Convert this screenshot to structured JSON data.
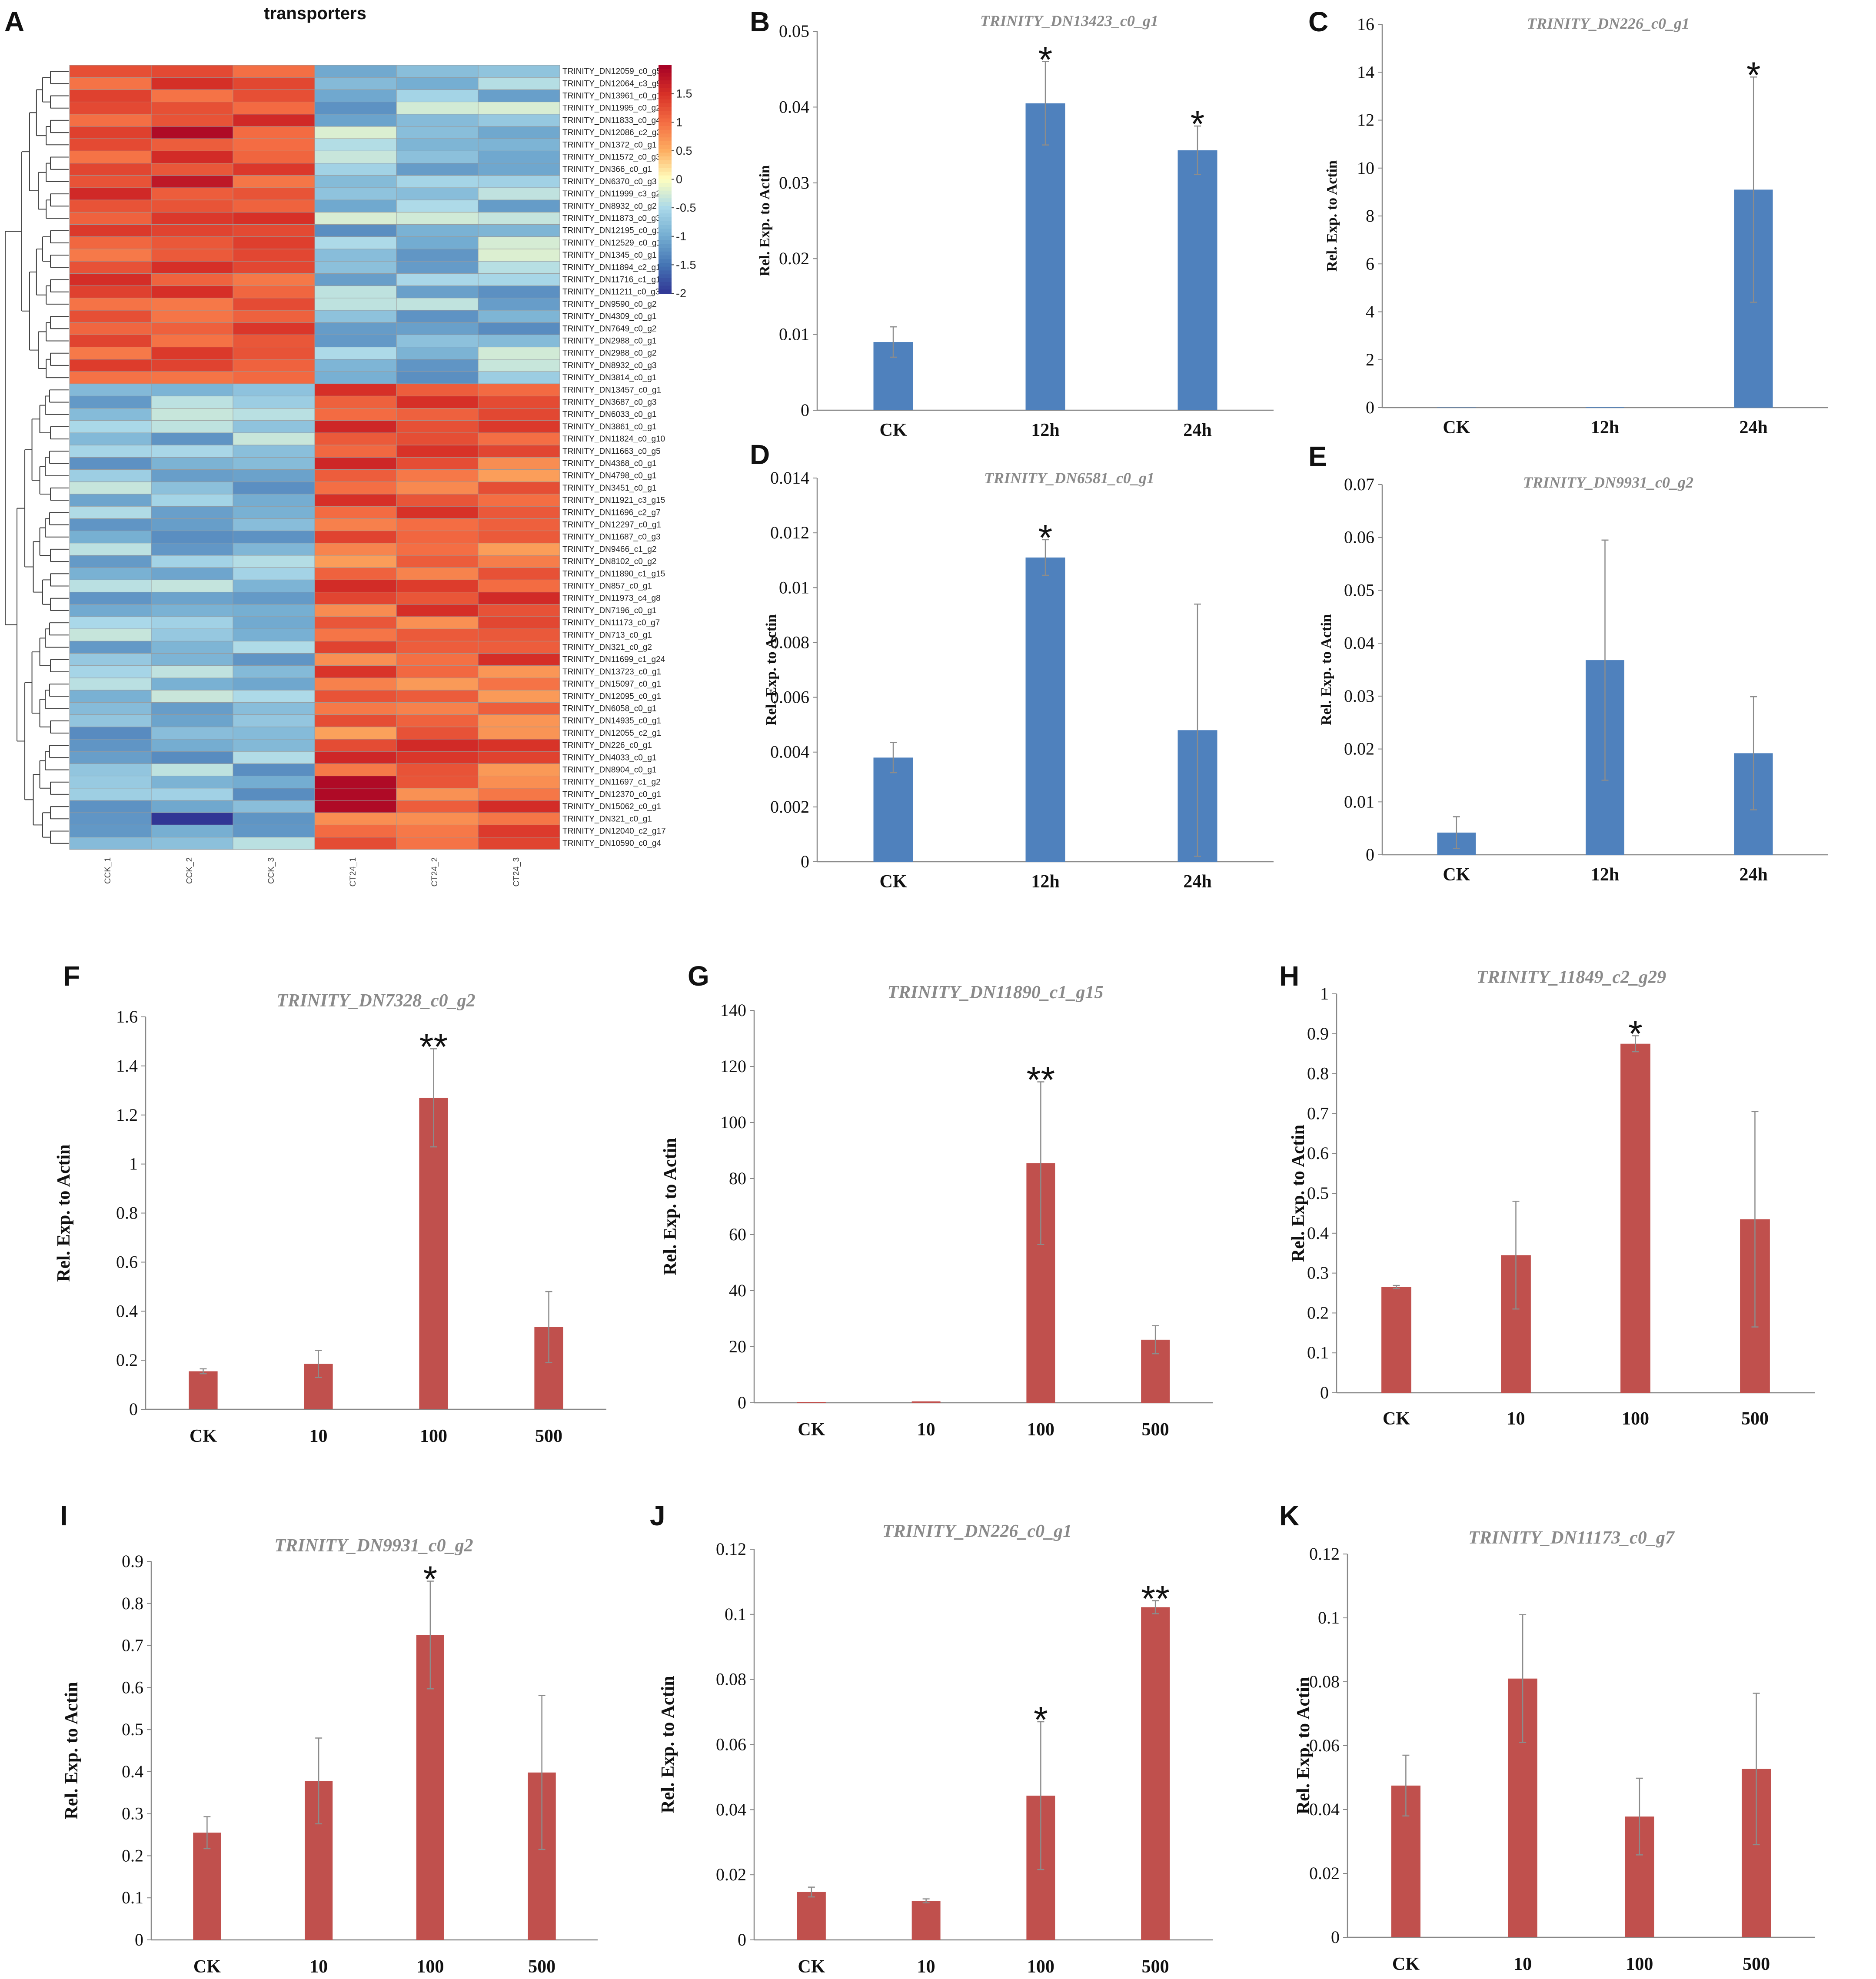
{
  "panel_labels": [
    "A",
    "B",
    "C",
    "D",
    "E",
    "F",
    "G",
    "H",
    "I",
    "J",
    "K"
  ],
  "colors": {
    "blue_bar": "#4f81bd",
    "red_bar": "#c0504d",
    "error_bar": "#8c8c8c",
    "title_gray": "#8a8a8a"
  },
  "heatmap": {
    "title": "transporters",
    "columns": [
      "CCK_1",
      "CCK_2",
      "CCK_3",
      "CT24_1",
      "CT24_2",
      "CT24_3"
    ],
    "genes": [
      "TRINITY_DN12059_c0_g5",
      "TRINITY_DN12064_c3_g9",
      "TRINITY_DN13961_c0_g1",
      "TRINITY_DN11995_c0_g24",
      "TRINITY_DN11833_c0_g4",
      "TRINITY_DN12086_c2_g31",
      "TRINITY_DN1372_c0_g1",
      "TRINITY_DN11572_c0_g3",
      "TRINITY_DN366_c0_g1",
      "TRINITY_DN6370_c0_g3",
      "TRINITY_DN11999_c3_g28",
      "TRINITY_DN8932_c0_g2",
      "TRINITY_DN11873_c0_g3",
      "TRINITY_DN12195_c0_g1",
      "TRINITY_DN12529_c0_g1",
      "TRINITY_DN1345_c0_g1",
      "TRINITY_DN11894_c2_g1",
      "TRINITY_DN11716_c1_g12",
      "TRINITY_DN11211_c0_g3",
      "TRINITY_DN9590_c0_g2",
      "TRINITY_DN4309_c0_g1",
      "TRINITY_DN7649_c0_g2",
      "TRINITY_DN2988_c0_g1",
      "TRINITY_DN2988_c0_g2",
      "TRINITY_DN8932_c0_g3",
      "TRINITY_DN3814_c0_g1",
      "TRINITY_DN13457_c0_g1",
      "TRINITY_DN3687_c0_g3",
      "TRINITY_DN6033_c0_g1",
      "TRINITY_DN3861_c0_g1",
      "TRINITY_DN11824_c0_g10",
      "TRINITY_DN11663_c0_g5",
      "TRINITY_DN4368_c0_g1",
      "TRINITY_DN4798_c0_g1",
      "TRINITY_DN3451_c0_g1",
      "TRINITY_DN11921_c3_g15",
      "TRINITY_DN11696_c2_g7",
      "TRINITY_DN12297_c0_g1",
      "TRINITY_DN11687_c0_g3",
      "TRINITY_DN9466_c1_g2",
      "TRINITY_DN8102_c0_g2",
      "TRINITY_DN11890_c1_g15",
      "TRINITY_DN857_c0_g1",
      "TRINITY_DN11973_c4_g8",
      "TRINITY_DN7196_c0_g1",
      "TRINITY_DN11173_c0_g7",
      "TRINITY_DN713_c0_g1",
      "TRINITY_DN321_c0_g2",
      "TRINITY_DN11699_c1_g24",
      "TRINITY_DN13723_c0_g1",
      "TRINITY_DN15097_c0_g1",
      "TRINITY_DN12095_c0_g1",
      "TRINITY_DN6058_c0_g1",
      "TRINITY_DN14935_c0_g1",
      "TRINITY_DN12055_c2_g1",
      "TRINITY_DN226_c0_g1",
      "TRINITY_DN4033_c0_g1",
      "TRINITY_DN8904_c0_g1",
      "TRINITY_DN11697_c1_g2",
      "TRINITY_DN12370_c0_g1",
      "TRINITY_DN15062_c0_g1",
      "TRINITY_DN321_c0_g1",
      "TRINITY_DN12040_c2_g17",
      "TRINITY_DN10590_c0_g4"
    ],
    "colorbar_ticks": [
      "1.5",
      "1",
      "0.5",
      "0",
      "-0.5",
      "-1",
      "-1.5",
      "-2"
    ]
  },
  "chart_data": [
    {
      "panel": "B",
      "type": "bar",
      "title": "TRINITY_DN13423_c0_g1",
      "ylabel": "Rel. Exp. to Actin",
      "categories": [
        "CK",
        "12h",
        "24h"
      ],
      "values": [
        0.009,
        0.0405,
        0.0343
      ],
      "errors": [
        0.002,
        0.0055,
        0.0032
      ],
      "significance": [
        "",
        "*",
        "*"
      ],
      "ylim": [
        0,
        0.05
      ],
      "yticks": [
        "0",
        "0.01",
        "0.02",
        "0.03",
        "0.04",
        "0.05"
      ],
      "color": "blue"
    },
    {
      "panel": "C",
      "type": "bar",
      "title": "TRINITY_DN226_c0_g1",
      "ylabel": "Rel. Exp. to Actin",
      "categories": [
        "CK",
        "12h",
        "24h"
      ],
      "values": [
        0.01,
        0.02,
        9.1
      ],
      "errors": [
        0,
        0,
        4.7
      ],
      "significance": [
        "",
        "",
        "*"
      ],
      "ylim": [
        0,
        16
      ],
      "yticks": [
        "0",
        "2",
        "4",
        "6",
        "8",
        "10",
        "12",
        "14",
        "16"
      ],
      "color": "blue"
    },
    {
      "panel": "D",
      "type": "bar",
      "title": "TRINITY_DN6581_c0_g1",
      "ylabel": "Rel. Exp. to Actin",
      "categories": [
        "CK",
        "12h",
        "24h"
      ],
      "values": [
        0.0038,
        0.0111,
        0.0048
      ],
      "errors": [
        0.00055,
        0.00065,
        0.0046
      ],
      "significance": [
        "",
        "*",
        ""
      ],
      "ylim": [
        0,
        0.014
      ],
      "yticks": [
        "0",
        "0.002",
        "0.004",
        "0.006",
        "0.008",
        "0.01",
        "0.012",
        "0.014"
      ],
      "color": "blue"
    },
    {
      "panel": "E",
      "type": "bar",
      "title": "TRINITY_DN9931_c0_g2",
      "ylabel": "Rel. Exp. to Actin",
      "categories": [
        "CK",
        "12h",
        "24h"
      ],
      "values": [
        0.0042,
        0.0368,
        0.0192
      ],
      "errors": [
        0.003,
        0.0227,
        0.0107
      ],
      "significance": [
        "",
        "",
        ""
      ],
      "ylim": [
        0,
        0.07
      ],
      "yticks": [
        "0",
        "0.01",
        "0.02",
        "0.03",
        "0.04",
        "0.05",
        "0.06",
        "0.07"
      ],
      "color": "blue"
    },
    {
      "panel": "F",
      "type": "bar",
      "title": "TRINITY_DN7328_c0_g2",
      "ylabel": "Rel. Exp. to Actin",
      "categories": [
        "CK",
        "10",
        "100",
        "500"
      ],
      "values": [
        0.155,
        0.185,
        1.27,
        0.335
      ],
      "errors": [
        0.01,
        0.055,
        0.2,
        0.145
      ],
      "significance": [
        "",
        "",
        "**",
        ""
      ],
      "ylim": [
        0,
        1.6
      ],
      "yticks": [
        "0",
        "0.2",
        "0.4",
        "0.6",
        "0.8",
        "1",
        "1.2",
        "1.4",
        "1.6"
      ],
      "color": "red"
    },
    {
      "panel": "G",
      "type": "bar",
      "title": "TRINITY_DN11890_c1_g15",
      "ylabel": "Rel. Exp. to Actin",
      "categories": [
        "CK",
        "10",
        "100",
        "500"
      ],
      "values": [
        0.3,
        0.5,
        85.5,
        22.5
      ],
      "errors": [
        0,
        0,
        29,
        5
      ],
      "significance": [
        "",
        "",
        "**",
        ""
      ],
      "ylim": [
        0,
        140
      ],
      "yticks": [
        "0",
        "20",
        "40",
        "60",
        "80",
        "100",
        "120",
        "140"
      ],
      "color": "red"
    },
    {
      "panel": "H",
      "type": "bar",
      "title": "TRINITY_11849_c2_g29",
      "ylabel": "Rel. Exp. to Actin",
      "categories": [
        "CK",
        "10",
        "100",
        "500"
      ],
      "values": [
        0.265,
        0.345,
        0.875,
        0.435
      ],
      "errors": [
        0.004,
        0.135,
        0.02,
        0.27
      ],
      "significance": [
        "",
        "",
        "*",
        ""
      ],
      "ylim": [
        0,
        1
      ],
      "yticks": [
        "0",
        "0.1",
        "0.2",
        "0.3",
        "0.4",
        "0.5",
        "0.6",
        "0.7",
        "0.8",
        "0.9",
        "1"
      ],
      "color": "red"
    },
    {
      "panel": "I",
      "type": "bar",
      "title": "TRINITY_DN9931_c0_g2",
      "ylabel": "Rel. Exp. to Actin",
      "categories": [
        "CK",
        "10",
        "100",
        "500"
      ],
      "values": [
        0.255,
        0.378,
        0.725,
        0.398
      ],
      "errors": [
        0.038,
        0.102,
        0.128,
        0.183
      ],
      "significance": [
        "",
        "",
        "*",
        ""
      ],
      "ylim": [
        0,
        0.9
      ],
      "yticks": [
        "0",
        "0.1",
        "0.2",
        "0.3",
        "0.4",
        "0.5",
        "0.6",
        "0.7",
        "0.8",
        "0.9"
      ],
      "color": "red"
    },
    {
      "panel": "J",
      "type": "bar",
      "title": "TRINITY_DN226_c0_g1",
      "ylabel": "Rel. Exp. to Actin",
      "categories": [
        "CK",
        "10",
        "100",
        "500"
      ],
      "values": [
        0.0147,
        0.012,
        0.0443,
        0.1022
      ],
      "errors": [
        0.0015,
        0.0006,
        0.0227,
        0.002
      ],
      "significance": [
        "",
        "",
        "*",
        "**"
      ],
      "ylim": [
        0,
        0.12
      ],
      "yticks": [
        "0",
        "0.02",
        "0.04",
        "0.06",
        "0.08",
        "0.1",
        "0.12"
      ],
      "color": "red"
    },
    {
      "panel": "K",
      "type": "bar",
      "title": "TRINITY_DN11173_c0_g7",
      "ylabel": "Rel. Exp. to Actin",
      "categories": [
        "CK",
        "10",
        "100",
        "500"
      ],
      "values": [
        0.0475,
        0.081,
        0.0378,
        0.0527
      ],
      "errors": [
        0.0095,
        0.02,
        0.012,
        0.0237
      ],
      "significance": [
        "",
        "",
        "",
        ""
      ],
      "ylim": [
        0,
        0.12
      ],
      "yticks": [
        "0",
        "0.02",
        "0.04",
        "0.06",
        "0.08",
        "0.1",
        "0.12"
      ],
      "color": "red"
    }
  ]
}
